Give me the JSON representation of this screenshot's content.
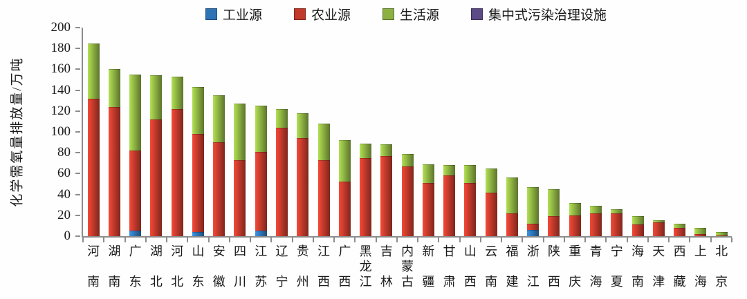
{
  "figure": {
    "background": "#fefefe",
    "axis_color": "#8c8c8c",
    "text_color": "#1a1a1a"
  },
  "legend": {
    "items": [
      {
        "id": "industrial",
        "label": "工业源",
        "color": "#2E74B5"
      },
      {
        "id": "agricultural",
        "label": "农业源",
        "color": "#C0392B"
      },
      {
        "id": "domestic",
        "label": "生活源",
        "color": "#8CB042"
      },
      {
        "id": "centralized",
        "label": "集中式污染治理设施",
        "color": "#5B4A85"
      }
    ]
  },
  "chart_data": {
    "type": "bar",
    "stacked": true,
    "title": "",
    "xlabel": "",
    "ylabel": "化学需氧量排放量/万吨",
    "ylim": [
      0,
      200
    ],
    "ytick_step": 20,
    "yticks": [
      0,
      20,
      40,
      60,
      80,
      100,
      120,
      140,
      160,
      180,
      200
    ],
    "grid": false,
    "legend_position": "top",
    "categories": [
      "河南",
      "湖南",
      "广东",
      "湖北",
      "河北",
      "山东",
      "安徽",
      "四川",
      "江苏",
      "辽宁",
      "贵州",
      "江西",
      "广西",
      "黑龙江",
      "吉林",
      "内蒙古",
      "新疆",
      "甘肃",
      "山西",
      "云南",
      "福建",
      "浙江",
      "陕西",
      "重庆",
      "青海",
      "宁夏",
      "海南",
      "天津",
      "西藏",
      "上海",
      "北京"
    ],
    "series": [
      {
        "id": "industrial",
        "name": "工业源",
        "color": "#2E74B5",
        "values": [
          0,
          0,
          5,
          0,
          0,
          4,
          0,
          0,
          5,
          0,
          0,
          0,
          0,
          0,
          0,
          0,
          0,
          0,
          0,
          0,
          0,
          6,
          0,
          0,
          0,
          0,
          0,
          0,
          0,
          0,
          0
        ]
      },
      {
        "id": "agricultural",
        "name": "农业源",
        "color": "#C0392B",
        "values": [
          132,
          124,
          77,
          112,
          122,
          94,
          90,
          73,
          76,
          104,
          94,
          73,
          52,
          75,
          77,
          67,
          51,
          58,
          51,
          42,
          22,
          6,
          19,
          20,
          22,
          22,
          11,
          13,
          8,
          2,
          1
        ]
      },
      {
        "id": "domestic",
        "name": "生活源",
        "color": "#8CB042",
        "values": [
          53,
          36,
          73,
          42,
          31,
          45,
          45,
          54,
          44,
          18,
          24,
          35,
          40,
          14,
          11,
          12,
          18,
          10,
          17,
          23,
          34,
          35,
          26,
          12,
          7,
          4,
          8,
          2,
          4,
          6,
          3
        ]
      },
      {
        "id": "centralized",
        "name": "集中式污染治理设施",
        "color": "#5B4A85",
        "values": [
          0,
          0,
          0,
          0,
          0,
          0,
          0,
          0,
          0,
          0,
          0,
          0,
          0,
          0,
          0,
          0,
          0,
          0,
          0,
          0,
          0,
          0,
          0,
          0,
          0,
          0,
          0,
          0,
          0,
          0,
          0
        ]
      }
    ]
  }
}
